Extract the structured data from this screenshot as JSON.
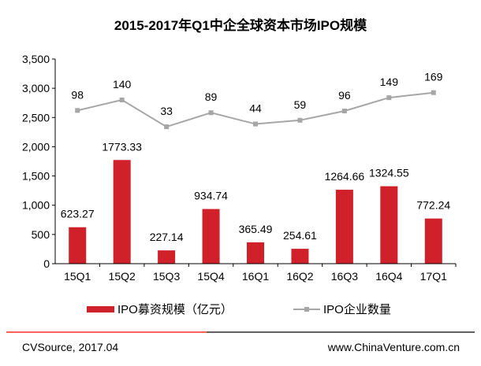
{
  "chart_data": {
    "type": "bar+line",
    "title": "2015-2017年Q1中企全球资本市场IPO规模",
    "categories": [
      "15Q1",
      "15Q2",
      "15Q3",
      "15Q4",
      "16Q1",
      "16Q2",
      "16Q3",
      "16Q4",
      "17Q1"
    ],
    "ylim": [
      0,
      3500
    ],
    "yticks": [
      "0",
      "500",
      "1,000",
      "1,500",
      "2,000",
      "2,500",
      "3,000",
      "3,500"
    ],
    "ytick_values": [
      0,
      500,
      1000,
      1500,
      2000,
      2500,
      3000,
      3500
    ],
    "grid": false,
    "legend_position": "bottom",
    "series": [
      {
        "name": "IPO募资规模（亿元）",
        "type": "bar",
        "color": "#d0202a",
        "values": [
          623.27,
          1773.33,
          227.14,
          934.74,
          365.49,
          254.61,
          1264.66,
          1324.55,
          772.24
        ],
        "labels": [
          "623.27",
          "1773.33",
          "227.14",
          "934.74",
          "365.49",
          "254.61",
          "1264.66",
          "1324.55",
          "772.24"
        ]
      },
      {
        "name": "IPO企业数量",
        "type": "line",
        "color": "#a6a6a6",
        "axis": "secondary-hidden",
        "values": [
          98,
          140,
          33,
          89,
          44,
          59,
          96,
          149,
          169
        ],
        "labels": [
          "98",
          "140",
          "33",
          "89",
          "44",
          "59",
          "96",
          "149",
          "169"
        ]
      }
    ]
  },
  "footer": {
    "source": "CVSource, 2017.04",
    "website": "www.ChinaVenture.com.cn"
  }
}
